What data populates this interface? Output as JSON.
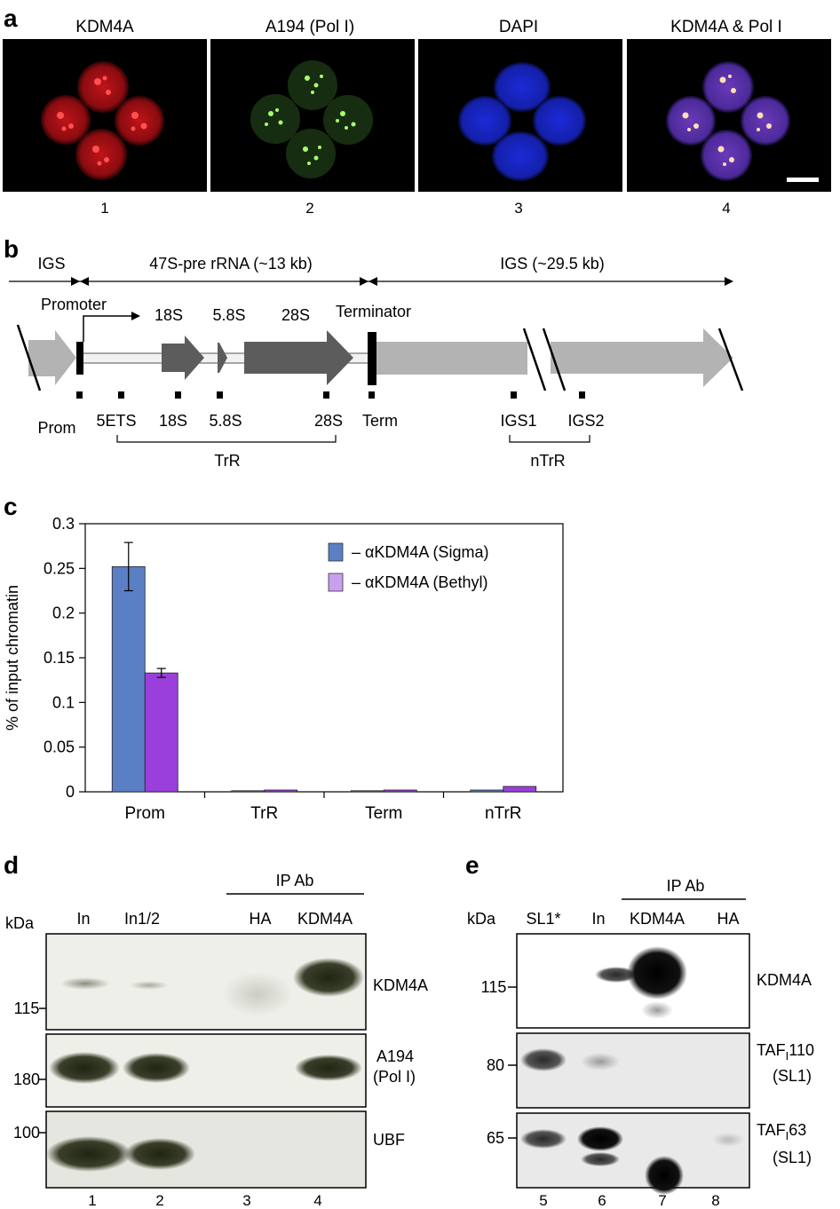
{
  "panel_a": {
    "letter": "a",
    "titles": [
      "KDM4A",
      "A194 (Pol I)",
      "DAPI",
      "KDM4A & Pol I"
    ],
    "numbers": [
      "1",
      "2",
      "3",
      "4"
    ],
    "colors": [
      "#e0201c",
      "#6fd84a",
      "#2c3ce0",
      "#c9a0ff"
    ]
  },
  "panel_b": {
    "letter": "b",
    "spans": [
      "IGS",
      "47S-pre rRNA (~13 kb)",
      "IGS (~29.5 kb)"
    ],
    "promoter": "Promoter",
    "terminator": "Terminator",
    "genes": [
      "18S",
      "5.8S",
      "28S"
    ],
    "probes": [
      "Prom",
      "5ETS",
      "18S",
      "5.8S",
      "28S",
      "Term",
      "IGS1",
      "IGS2"
    ],
    "groups": [
      "TrR",
      "nTrR"
    ]
  },
  "panel_c": {
    "letter": "c",
    "chart_data": {
      "type": "bar",
      "categories": [
        "Prom",
        "TrR",
        "Term",
        "nTrR"
      ],
      "series": [
        {
          "name": "– αKDM4A (Sigma)",
          "values": [
            0.252,
            0.0005,
            0.0005,
            0.002
          ],
          "errors": [
            0.027,
            0,
            0,
            0
          ],
          "color": "#5b7fc4"
        },
        {
          "name": "– αKDM4A (Bethyl)",
          "values": [
            0.133,
            0.002,
            0.002,
            0.006
          ],
          "errors": [
            0.005,
            0,
            0,
            0
          ],
          "color": "#9b3fdc"
        }
      ],
      "ylabel": "% of input chromatin",
      "ylim": [
        0,
        0.3
      ],
      "yticks": [
        "0",
        "0.05",
        "0.1",
        "0.15",
        "0.2",
        "0.25",
        "0.3"
      ],
      "legend": "top-right"
    }
  },
  "panel_d": {
    "letter": "d",
    "kda": "kDa",
    "ip": "IP Ab",
    "lanes": [
      "In",
      "In1/2",
      "HA",
      "KDM4A"
    ],
    "numbers": [
      "1",
      "2",
      "3",
      "4"
    ],
    "markers": [
      "115",
      "180",
      "100"
    ],
    "blots": [
      "KDM4A",
      "A194",
      "(Pol I)",
      "UBF"
    ]
  },
  "panel_e": {
    "letter": "e",
    "kda": "kDa",
    "ip": "IP Ab",
    "lanes": [
      "SL1*",
      "In",
      "KDM4A",
      "HA"
    ],
    "numbers": [
      "5",
      "6",
      "7",
      "8"
    ],
    "markers": [
      "115",
      "80",
      "65"
    ],
    "blots": {
      "b1": "KDM4A",
      "b2_main": "TAF",
      "b2_sub": "I",
      "b2_num": "110",
      "b2_sl": "(SL1)",
      "b3_main": "TAF",
      "b3_sub": "I",
      "b3_num": "63",
      "b3_sl": "(SL1)"
    }
  }
}
